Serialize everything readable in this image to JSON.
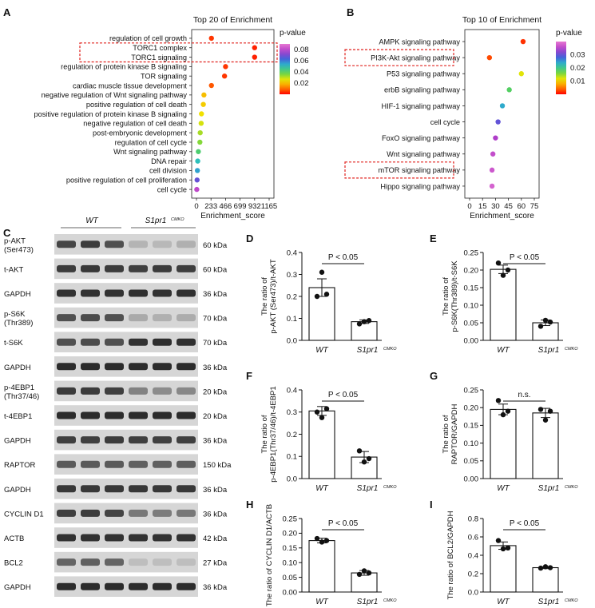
{
  "panels": {
    "A": {
      "letter": "A",
      "chart_data": {
        "type": "scatter",
        "title": "Top 20 of Enrichment",
        "xlabel": "Enrichment_score",
        "ylabel": "",
        "xlim": [
          0,
          1165
        ],
        "xticks": [
          "0",
          "233",
          "466",
          "699",
          "932",
          "1165"
        ],
        "legend_title": "p-value",
        "legend_ticks": [
          "0.08",
          "0.06",
          "0.04",
          "0.02"
        ],
        "pmax": 0.09,
        "highlighted": [
          "TORC1 complex",
          "TORC1 signaling"
        ],
        "categories": [
          "regulation of cell growth",
          "TORC1 complex",
          "TORC1 signaling",
          "regulation of protein kinase B signaling",
          "TOR signaling",
          "cardiac muscle tissue development",
          "negative regulation of Wnt signaling pathway",
          "positive regulation of cell death",
          "positive regulation of protein kinase B signaling",
          "negative regulation of cell death",
          "post-embryonic development",
          "regulation of cell cycle",
          "Wnt signaling pathway",
          "DNA repair",
          "cell division",
          "positive regulation of cell proliferation",
          "cell cycle"
        ],
        "values": [
          240,
          932,
          932,
          466,
          450,
          240,
          120,
          110,
          80,
          75,
          60,
          55,
          30,
          20,
          15,
          10,
          5
        ],
        "pvalues": [
          0.005,
          0.003,
          0.003,
          0.005,
          0.005,
          0.008,
          0.02,
          0.022,
          0.025,
          0.028,
          0.032,
          0.035,
          0.042,
          0.05,
          0.055,
          0.068,
          0.08
        ]
      }
    },
    "B": {
      "letter": "B",
      "chart_data": {
        "type": "scatter",
        "title": "Top 10 of Enrichment",
        "xlabel": "Enrichment_score",
        "ylabel": "",
        "xlim": [
          0,
          75
        ],
        "xticks": [
          "0",
          "15",
          "30",
          "45",
          "60",
          "75"
        ],
        "legend_title": "p-value",
        "legend_ticks": [
          "0.03",
          "0.02",
          "0.01"
        ],
        "pmax": 0.04,
        "highlighted": [
          "PI3K-Akt signaling pathway",
          "mTOR signaling pathway"
        ],
        "categories": [
          "AMPK signaling pathway",
          "PI3K-Akt signaling pathway",
          "P53 signaling pathway",
          "erbB signaling pathway",
          "HIF-1 signaling pathway",
          "cell cycle",
          "FoxO signaling pathway",
          "Wnt signaling pathway",
          "mTOR signaling pathway",
          "Hippo signaling pathway"
        ],
        "values": [
          62,
          23,
          60,
          46,
          38,
          33,
          30,
          27,
          26,
          26
        ],
        "pvalues": [
          0.002,
          0.003,
          0.012,
          0.018,
          0.024,
          0.03,
          0.034,
          0.036,
          0.037,
          0.038
        ]
      }
    },
    "C": {
      "letter": "C",
      "group_wt": "WT",
      "group_ko": "S1pr1",
      "group_ko_sup": "CMKO",
      "blots": [
        {
          "label": "p-AKT",
          "label2": "(Ser473)",
          "kda": "60 kDa",
          "intensity": [
            0.75,
            0.8,
            0.7,
            0.2,
            0.18,
            0.22
          ]
        },
        {
          "label": "t-AKT",
          "label2": "",
          "kda": "60 kDa",
          "intensity": [
            0.8,
            0.82,
            0.8,
            0.78,
            0.8,
            0.79
          ]
        },
        {
          "label": "GAPDH",
          "label2": "",
          "kda": "36 kDa",
          "intensity": [
            0.85,
            0.85,
            0.85,
            0.86,
            0.85,
            0.86
          ]
        },
        {
          "label": "p-S6K",
          "label2": "(Thr389)",
          "kda": "70 kDa",
          "intensity": [
            0.7,
            0.72,
            0.7,
            0.25,
            0.22,
            0.24
          ]
        },
        {
          "label": "t-S6K",
          "label2": "",
          "kda": "70 kDa",
          "intensity": [
            0.7,
            0.72,
            0.7,
            0.85,
            0.87,
            0.86
          ]
        },
        {
          "label": "GAPDH",
          "label2": "",
          "kda": "36 kDa",
          "intensity": [
            0.88,
            0.88,
            0.88,
            0.88,
            0.88,
            0.88
          ]
        },
        {
          "label": "p-4EBP1",
          "label2": "(Thr37/46)",
          "kda": "20 kDa",
          "intensity": [
            0.8,
            0.8,
            0.78,
            0.45,
            0.4,
            0.42
          ]
        },
        {
          "label": "t-4EBP1",
          "label2": "",
          "kda": "20 kDa",
          "intensity": [
            0.88,
            0.88,
            0.88,
            0.88,
            0.88,
            0.88
          ]
        },
        {
          "label": "GAPDH",
          "label2": "",
          "kda": "36 kDa",
          "intensity": [
            0.78,
            0.78,
            0.8,
            0.78,
            0.78,
            0.78
          ]
        },
        {
          "label": "RAPTOR",
          "label2": "",
          "kda": "150 kDa",
          "intensity": [
            0.65,
            0.65,
            0.65,
            0.62,
            0.62,
            0.63
          ]
        },
        {
          "label": "GAPDH",
          "label2": "",
          "kda": "36 kDa",
          "intensity": [
            0.82,
            0.82,
            0.82,
            0.82,
            0.82,
            0.82
          ]
        },
        {
          "label": "CYCLIN D1",
          "label2": "",
          "kda": "36 kDa",
          "intensity": [
            0.78,
            0.8,
            0.76,
            0.5,
            0.48,
            0.5
          ]
        },
        {
          "label": "ACTB",
          "label2": "",
          "kda": "42 kDa",
          "intensity": [
            0.85,
            0.85,
            0.85,
            0.85,
            0.85,
            0.85
          ]
        },
        {
          "label": "BCL2",
          "label2": "",
          "kda": "27 kDa",
          "intensity": [
            0.6,
            0.62,
            0.6,
            0.15,
            0.15,
            0.15
          ]
        },
        {
          "label": "GAPDH",
          "label2": "",
          "kda": "36 kDa",
          "intensity": [
            0.88,
            0.88,
            0.88,
            0.88,
            0.88,
            0.88
          ]
        }
      ]
    },
    "bars": [
      {
        "letter": "D",
        "chart_data": {
          "type": "bar",
          "ylabel_line1": "The ratio of",
          "ylabel_line2": "p-AKT (Ser473)/t-AKT",
          "ylim": [
            0,
            0.4
          ],
          "yticks": [
            "0.0",
            "0.1",
            "0.2",
            "0.3",
            "0.4"
          ],
          "categories": [
            "WT",
            "S1pr1"
          ],
          "category_sup": "CMKO",
          "values": [
            0.24,
            0.085
          ],
          "errors": [
            0.04,
            0.008
          ],
          "points": [
            [
              0.2,
              0.31,
              0.21
            ],
            [
              0.075,
              0.085,
              0.09
            ]
          ],
          "significance": "P < 0.05"
        }
      },
      {
        "letter": "E",
        "chart_data": {
          "type": "bar",
          "ylabel_line1": "The ratio of",
          "ylabel_line2": "p-S6K(Thr389)/t-S6K",
          "ylim": [
            0,
            0.25
          ],
          "yticks": [
            "0.00",
            "0.05",
            "0.10",
            "0.15",
            "0.20",
            "0.25"
          ],
          "categories": [
            "WT",
            "S1pr1"
          ],
          "category_sup": "CMKO",
          "values": [
            0.202,
            0.05
          ],
          "errors": [
            0.012,
            0.008
          ],
          "points": [
            [
              0.22,
              0.185,
              0.2
            ],
            [
              0.04,
              0.057,
              0.052
            ]
          ],
          "significance": "P < 0.05"
        }
      },
      {
        "letter": "F",
        "chart_data": {
          "type": "bar",
          "ylabel_line1": "The ratio of",
          "ylabel_line2": "p-4EBP1(Thr37/46)/t-4EBP1",
          "ylim": [
            0,
            0.4
          ],
          "yticks": [
            "0.0",
            "0.1",
            "0.2",
            "0.3",
            "0.4"
          ],
          "categories": [
            "WT",
            "S1pr1"
          ],
          "category_sup": "CMKO",
          "values": [
            0.305,
            0.097
          ],
          "errors": [
            0.02,
            0.025
          ],
          "points": [
            [
              0.3,
              0.275,
              0.315
            ],
            [
              0.125,
              0.075,
              0.09
            ]
          ],
          "significance": "P < 0.05"
        }
      },
      {
        "letter": "G",
        "chart_data": {
          "type": "bar",
          "ylabel_line1": "The ratio of",
          "ylabel_line2": "RAPTOR/GAPDH",
          "ylim": [
            0,
            0.25
          ],
          "yticks": [
            "0.00",
            "0.05",
            "0.10",
            "0.15",
            "0.20",
            "0.25"
          ],
          "categories": [
            "WT",
            "S1pr1"
          ],
          "category_sup": "CMKO",
          "values": [
            0.195,
            0.185
          ],
          "errors": [
            0.015,
            0.013
          ],
          "points": [
            [
              0.22,
              0.18,
              0.19
            ],
            [
              0.195,
              0.165,
              0.19
            ]
          ],
          "significance": "n.s."
        }
      },
      {
        "letter": "H",
        "chart_data": {
          "type": "bar",
          "ylabel_line1": "The ratio of CYCLIN D1/ACTB",
          "ylabel_line2": "",
          "ylim": [
            0,
            0.25
          ],
          "yticks": [
            "0.00",
            "0.05",
            "0.10",
            "0.15",
            "0.20",
            "0.25"
          ],
          "categories": [
            "WT",
            "S1pr1"
          ],
          "category_sup": "CMKO",
          "values": [
            0.175,
            0.065
          ],
          "errors": [
            0.008,
            0.008
          ],
          "points": [
            [
              0.182,
              0.17,
              0.175
            ],
            [
              0.06,
              0.072,
              0.065
            ]
          ],
          "significance": "P < 0.05"
        }
      },
      {
        "letter": "I",
        "chart_data": {
          "type": "bar",
          "ylabel_line1": "The ratio of BCL2/GAPDH",
          "ylabel_line2": "",
          "ylim": [
            0,
            0.8
          ],
          "yticks": [
            "0.0",
            "0.2",
            "0.4",
            "0.6",
            "0.8"
          ],
          "categories": [
            "WT",
            "S1pr1"
          ],
          "category_sup": "CMKO",
          "values": [
            0.505,
            0.265
          ],
          "errors": [
            0.04,
            0.01
          ],
          "points": [
            [
              0.56,
              0.47,
              0.48
            ],
            [
              0.26,
              0.275,
              0.265
            ]
          ],
          "significance": "P < 0.05"
        }
      }
    ]
  }
}
